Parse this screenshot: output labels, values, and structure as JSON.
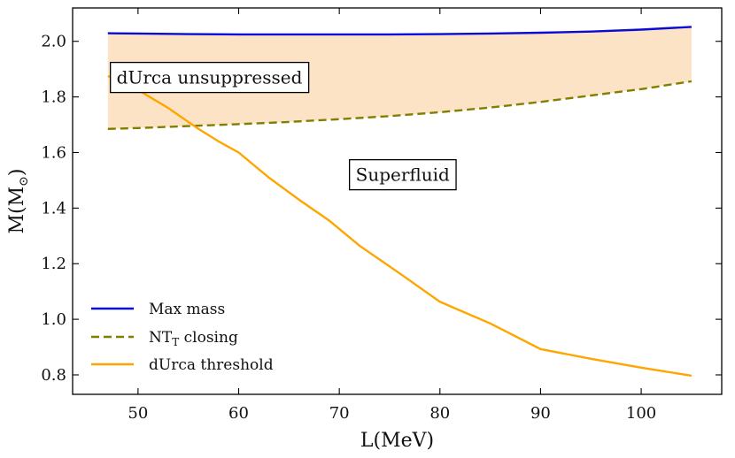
{
  "chart_data": {
    "type": "line",
    "title": "",
    "xlabel": "L(MeV)",
    "ylabel": "M(M",
    "ylabel_sub": "⊙",
    "ylabel_close": ")",
    "xlim": [
      43.5,
      108
    ],
    "ylim": [
      0.73,
      2.12
    ],
    "xticks": [
      50,
      60,
      70,
      80,
      90,
      100
    ],
    "yticks": [
      0.8,
      1.0,
      1.2,
      1.4,
      1.6,
      1.8,
      2.0
    ],
    "xtick_labels": [
      "50",
      "60",
      "70",
      "80",
      "90",
      "100"
    ],
    "ytick_labels": [
      "0.8",
      "1.0",
      "1.2",
      "1.4",
      "1.6",
      "1.8",
      "2.0"
    ],
    "series": [
      {
        "name": "Max mass",
        "color": "#0a0ad6",
        "style": "solid",
        "x": [
          47,
          50,
          55,
          60,
          65,
          70,
          75,
          80,
          85,
          90,
          95,
          100,
          105
        ],
        "values": [
          2.029,
          2.028,
          2.026,
          2.025,
          2.025,
          2.025,
          2.025,
          2.026,
          2.028,
          2.031,
          2.035,
          2.042,
          2.052
        ]
      },
      {
        "name": "NT",
        "name_sub": "T",
        "name_rest": " closing",
        "color": "#7f7f00",
        "style": "dashed",
        "x": [
          47,
          50,
          55,
          60,
          65,
          70,
          75,
          80,
          85,
          90,
          95,
          100,
          105
        ],
        "values": [
          1.685,
          1.688,
          1.695,
          1.702,
          1.71,
          1.72,
          1.731,
          1.745,
          1.762,
          1.782,
          1.805,
          1.828,
          1.856
        ]
      },
      {
        "name": "dUrca threshold",
        "color": "#ffa500",
        "style": "solid",
        "x": [
          47,
          48,
          50,
          53,
          56,
          58,
          60,
          63,
          66,
          69,
          72,
          76,
          80,
          85,
          90,
          95,
          100,
          105
        ],
        "values": [
          1.875,
          1.86,
          1.825,
          1.76,
          1.685,
          1.64,
          1.6,
          1.51,
          1.43,
          1.355,
          1.265,
          1.165,
          1.063,
          0.985,
          0.893,
          0.858,
          0.826,
          0.797
        ]
      }
    ],
    "shaded_region": {
      "between": [
        "Max mass",
        "NT closing"
      ],
      "x_range": [
        47,
        105
      ],
      "color": "#fde3c5"
    },
    "annotations": [
      {
        "text": "dUrca unsuppressed",
        "x": 57.1,
        "y": 1.87
      },
      {
        "text": "Superfluid",
        "x": 76.3,
        "y": 1.52
      }
    ],
    "legend": {
      "placement": "lower-left"
    }
  }
}
